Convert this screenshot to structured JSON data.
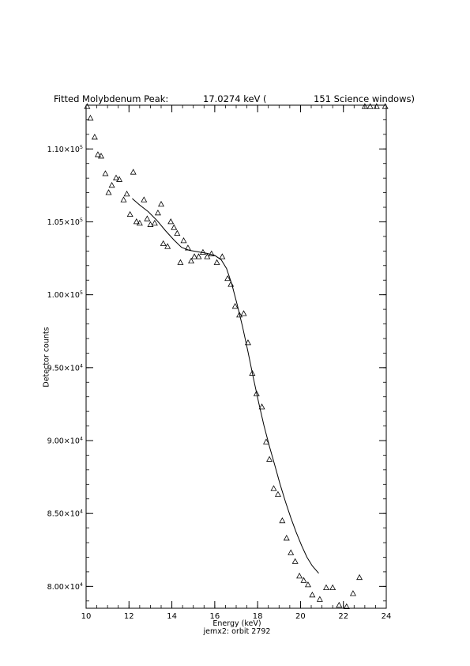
{
  "chart_data": {
    "type": "scatter",
    "title": {
      "left": "Fitted Molybdenum Peak:",
      "value": "17.0274 keV (",
      "right": "151 Science windows)"
    },
    "xlabel": "Energy (keV)",
    "subcaption": "jemx2: orbit 2792",
    "ylabel": "Detector counts",
    "xlim": [
      10,
      24
    ],
    "ylim": [
      78500,
      113000
    ],
    "xticks": [
      10,
      12,
      14,
      16,
      18,
      20,
      22,
      24
    ],
    "xtick_labels": [
      "10",
      "12",
      "14",
      "16",
      "18",
      "20",
      "22",
      "24"
    ],
    "yticks": [
      {
        "value": 80000,
        "mantissa": "8.00",
        "exp": "4"
      },
      {
        "value": 85000,
        "mantissa": "8.50",
        "exp": "4"
      },
      {
        "value": 90000,
        "mantissa": "9.00",
        "exp": "4"
      },
      {
        "value": 95000,
        "mantissa": "9.50",
        "exp": "4"
      },
      {
        "value": 100000,
        "mantissa": "1.00",
        "exp": "5"
      },
      {
        "value": 105000,
        "mantissa": "1.05",
        "exp": "5"
      },
      {
        "value": 110000,
        "mantissa": "1.10",
        "exp": "5"
      }
    ],
    "x_minor_step": 0.5,
    "y_minor_step": 1000,
    "series": [
      {
        "marker": "triangle",
        "x": [
          10.05,
          10.2,
          10.4,
          10.55,
          10.7,
          10.9,
          11.05,
          11.2,
          11.4,
          11.55,
          11.75,
          11.9,
          12.05,
          12.2,
          12.35,
          12.5,
          12.7,
          12.85,
          13.0,
          13.2,
          13.35,
          13.5,
          13.6,
          13.8,
          13.95,
          14.1,
          14.25,
          14.4,
          14.55,
          14.75,
          14.9,
          15.05,
          15.25,
          15.45,
          15.65,
          15.85,
          16.1,
          16.35,
          16.6,
          16.75,
          16.95,
          17.15,
          17.35,
          17.55,
          17.75,
          17.95,
          18.2,
          18.4,
          18.55,
          18.75,
          18.95,
          19.15,
          19.35,
          19.55,
          19.75,
          19.95,
          20.15,
          20.35,
          20.55,
          20.9,
          21.2,
          21.5,
          21.8,
          22.15,
          22.45,
          22.75,
          23.0,
          23.25,
          23.55,
          23.95
        ],
        "y": [
          112900,
          112100,
          110800,
          109600,
          109500,
          108300,
          107000,
          107500,
          108000,
          107900,
          106500,
          106900,
          105500,
          108400,
          105000,
          104900,
          106500,
          105200,
          104800,
          104900,
          105600,
          106200,
          103500,
          103300,
          105000,
          104600,
          104200,
          102200,
          103700,
          103200,
          102300,
          102600,
          102600,
          102900,
          102600,
          102800,
          102200,
          102600,
          101100,
          100700,
          99200,
          98600,
          98700,
          96700,
          94600,
          93200,
          92300,
          89900,
          88700,
          86700,
          86300,
          84500,
          83300,
          82300,
          81700,
          80700,
          80400,
          80100,
          79400,
          79100,
          79900,
          79900,
          78700,
          78600,
          79500,
          80600,
          112900,
          112900,
          112900,
          112900
        ]
      }
    ],
    "fit": {
      "x": [
        12.15,
        12.5,
        12.9,
        13.3,
        13.7,
        14.1,
        14.45,
        14.8,
        15.2,
        15.6,
        16.0,
        16.3,
        16.55,
        16.8,
        17.05,
        17.3,
        17.55,
        17.8,
        18.05,
        18.3,
        18.55,
        18.8,
        19.05,
        19.3,
        19.55,
        19.8,
        20.05,
        20.3,
        20.55,
        20.85
      ],
      "y": [
        106600,
        106150,
        105700,
        105100,
        104400,
        103750,
        103250,
        103050,
        102950,
        102850,
        102700,
        102400,
        101800,
        100700,
        99300,
        97800,
        96100,
        94300,
        92600,
        91000,
        89600,
        88300,
        87000,
        85800,
        84700,
        83700,
        82800,
        82000,
        81400,
        80900
      ]
    }
  }
}
